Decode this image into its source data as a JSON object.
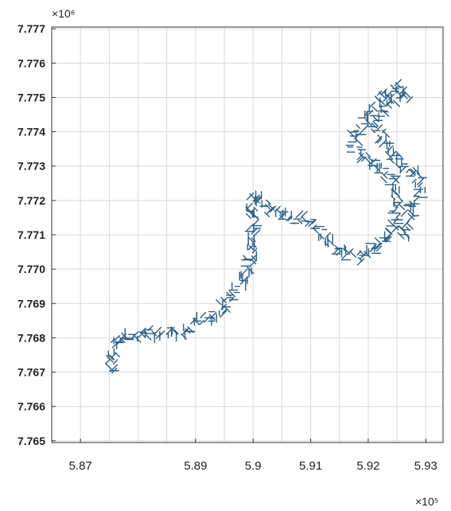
{
  "chart_data": {
    "type": "scatter",
    "marker": "short line segments (vector field / flow direction)",
    "series_color": "#2d5f86",
    "grid": true,
    "xlim": [
      586500,
      593300
    ],
    "ylim": [
      7764950,
      7777050
    ],
    "x_ticks": [
      587000,
      589000,
      590000,
      591000,
      592000,
      593000
    ],
    "x_tick_labels": [
      "5.87",
      "5.89",
      "5.9",
      "5.91",
      "5.92",
      "5.93"
    ],
    "x_exponent_label": "×10⁵",
    "y_ticks": [
      7765000,
      7766000,
      7767000,
      7768000,
      7769000,
      7770000,
      7771000,
      7772000,
      7773000,
      7774000,
      7775000,
      7776000,
      7777000
    ],
    "y_tick_labels": [
      "7.765",
      "7.766",
      "7.767",
      "7.768",
      "7.769",
      "7.770",
      "7.771",
      "7.772",
      "7.773",
      "7.774",
      "7.775",
      "7.776",
      "7.777"
    ],
    "y_exponent_label": "×10⁶",
    "path": [
      [
        587550,
        7767050
      ],
      [
        587550,
        7767500
      ],
      [
        587650,
        7768000
      ],
      [
        588000,
        7768100
      ],
      [
        588700,
        7768150
      ],
      [
        589300,
        7768650
      ],
      [
        589650,
        7769200
      ],
      [
        589850,
        7769800
      ],
      [
        590000,
        7770500
      ],
      [
        590000,
        7771200
      ],
      [
        589950,
        7771900
      ],
      [
        590050,
        7772200
      ],
      [
        590250,
        7771700
      ],
      [
        590700,
        7771500
      ],
      [
        591000,
        7771400
      ],
      [
        591200,
        7771000
      ],
      [
        591450,
        7770600
      ],
      [
        591750,
        7770350
      ],
      [
        592050,
        7770500
      ],
      [
        592250,
        7770800
      ],
      [
        592400,
        7771100
      ],
      [
        592500,
        7771500
      ],
      [
        592500,
        7771900
      ],
      [
        592450,
        7772400
      ],
      [
        592300,
        7772800
      ],
      [
        592050,
        7773100
      ],
      [
        591800,
        7773400
      ],
      [
        591750,
        7773900
      ],
      [
        591900,
        7774300
      ],
      [
        592100,
        7774700
      ],
      [
        592250,
        7775100
      ],
      [
        592500,
        7775300
      ],
      [
        592650,
        7775050
      ],
      [
        592300,
        7774800
      ],
      [
        592150,
        7774200
      ],
      [
        592300,
        7773600
      ],
      [
        592500,
        7773200
      ],
      [
        592650,
        7772900
      ],
      [
        592850,
        7772700
      ],
      [
        592900,
        7772300
      ],
      [
        592750,
        7771800
      ],
      [
        592700,
        7771300
      ],
      [
        592600,
        7770900
      ]
    ]
  }
}
